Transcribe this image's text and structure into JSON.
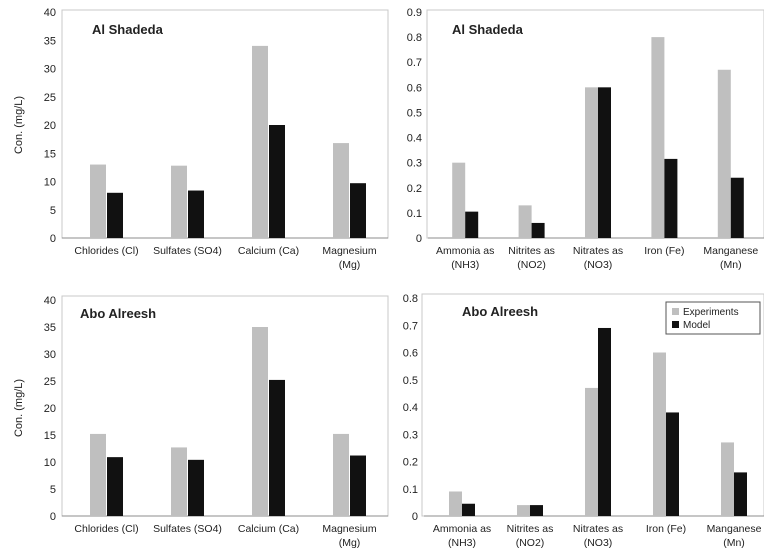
{
  "colors": {
    "experiments": "#bfbfbf",
    "model": "#111111",
    "frame": "#c8c8c8",
    "axis": "#8c8c8c",
    "text": "#222222"
  },
  "legend": {
    "experiments": "Experiments",
    "model": "Model"
  },
  "chart_data": [
    {
      "type": "bar",
      "title": "Al Shadeda",
      "ylabel": "Con. (mg/L)",
      "ylim": [
        0,
        40
      ],
      "yticks": [
        "0",
        "5",
        "10",
        "15",
        "20",
        "25",
        "30",
        "35",
        "40"
      ],
      "categories": [
        [
          "Chlorides (Cl)"
        ],
        [
          "Sulfates (SO4)"
        ],
        [
          "Calcium (Ca)"
        ],
        [
          "Magnesium",
          "(Mg)"
        ]
      ],
      "series": [
        {
          "name": "Experiments",
          "values": [
            13,
            12.8,
            34,
            16.8
          ]
        },
        {
          "name": "Model",
          "values": [
            8,
            8.4,
            20,
            9.7
          ]
        }
      ]
    },
    {
      "type": "bar",
      "title": "Al Shadeda",
      "ylabel": "",
      "ylim": [
        0,
        0.9
      ],
      "yticks": [
        "0",
        "0.1",
        "0.2",
        "0.3",
        "0.4",
        "0.5",
        "0.6",
        "0.7",
        "0.8",
        "0.9"
      ],
      "categories": [
        [
          "Ammonia as",
          "(NH3)"
        ],
        [
          "Nitrites as",
          "(NO2)"
        ],
        [
          "Nitrates as",
          "(NO3)"
        ],
        [
          "Iron (Fe)"
        ],
        [
          "Manganese",
          "(Mn)"
        ]
      ],
      "series": [
        {
          "name": "Experiments",
          "values": [
            0.3,
            0.13,
            0.6,
            0.8,
            0.67
          ]
        },
        {
          "name": "Model",
          "values": [
            0.105,
            0.06,
            0.6,
            0.315,
            0.24
          ]
        }
      ]
    },
    {
      "type": "bar",
      "title": "Abo Alreesh",
      "ylabel": "Con. (mg/L)",
      "ylim": [
        0,
        40
      ],
      "yticks": [
        "0",
        "5",
        "10",
        "15",
        "20",
        "25",
        "30",
        "35",
        "40"
      ],
      "categories": [
        [
          "Chlorides (Cl)"
        ],
        [
          "Sulfates (SO4)"
        ],
        [
          "Calcium (Ca)"
        ],
        [
          "Magnesium",
          "(Mg)"
        ]
      ],
      "series": [
        {
          "name": "Experiments",
          "values": [
            15.2,
            12.7,
            35,
            15.2
          ]
        },
        {
          "name": "Model",
          "values": [
            10.9,
            10.4,
            25.2,
            11.2
          ]
        }
      ]
    },
    {
      "type": "bar",
      "title": "Abo Alreesh",
      "ylabel": "",
      "ylim": [
        0,
        0.8
      ],
      "yticks": [
        "0",
        "0.1",
        "0.2",
        "0.3",
        "0.4",
        "0.5",
        "0.6",
        "0.7",
        "0.8"
      ],
      "legend": true,
      "categories": [
        [
          "Ammonia as",
          "(NH3)"
        ],
        [
          "Nitrites as",
          "(NO2)"
        ],
        [
          "Nitrates as",
          "(NO3)"
        ],
        [
          "Iron (Fe)"
        ],
        [
          "Manganese",
          "(Mn)"
        ]
      ],
      "series": [
        {
          "name": "Experiments",
          "values": [
            0.09,
            0.04,
            0.47,
            0.6,
            0.27
          ]
        },
        {
          "name": "Model",
          "values": [
            0.045,
            0.04,
            0.69,
            0.38,
            0.16
          ]
        }
      ]
    }
  ]
}
